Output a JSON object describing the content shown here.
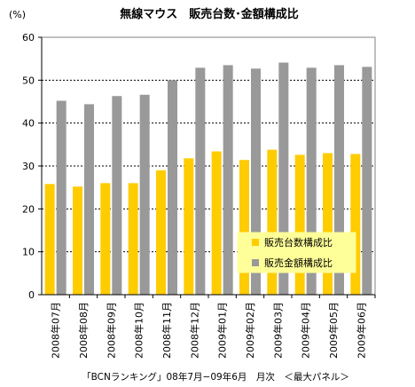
{
  "chart_data": {
    "type": "bar",
    "title": "無線マウス　販売台数･金額構成比",
    "ylabel": "(%)",
    "xlabel": "",
    "ylim": [
      0,
      60
    ],
    "yticks": [
      0,
      10,
      20,
      30,
      40,
      50,
      60
    ],
    "grid": "horizontal dashed at 10-unit steps (y=0..50 region)",
    "legend_position": "inside-bottom-right",
    "categories": [
      "2008年07月",
      "2008年08月",
      "2008年09月",
      "2008年10月",
      "2008年11月",
      "2008年12月",
      "2009年01月",
      "2009年02月",
      "2009年03月",
      "2009年04月",
      "2009年05月",
      "2009年06月"
    ],
    "series": [
      {
        "name": "販売台数構成比",
        "color": "#FFCC00",
        "values": [
          25.8,
          25.2,
          26.0,
          26.0,
          29.0,
          31.8,
          33.4,
          31.4,
          33.8,
          32.6,
          33.0,
          32.8
        ]
      },
      {
        "name": "販売金額構成比",
        "color": "#999999",
        "values": [
          45.2,
          44.4,
          46.3,
          46.6,
          50.0,
          52.9,
          53.5,
          52.7,
          54.1,
          52.9,
          53.5,
          53.1
        ]
      }
    ],
    "footer": "「BCNランキング」08年7月−09年6月　月次　＜最大パネル＞"
  },
  "colors": {
    "plot_bg": "#FFFFFF",
    "legend_bg": "#FFFF99",
    "axis": "#000000"
  }
}
